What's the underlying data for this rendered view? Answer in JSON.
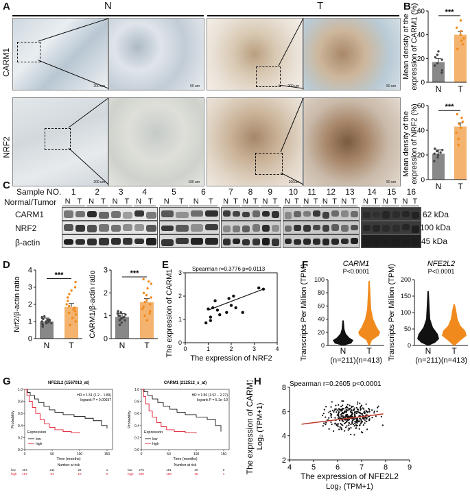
{
  "panel_labels": {
    "A": "A",
    "B": "B",
    "C": "C",
    "D": "D",
    "E": "E",
    "F": "F",
    "G": "G",
    "H": "H"
  },
  "panel_a": {
    "group_n": "N",
    "group_t": "T",
    "row1": "CARM1",
    "row2": "NRF2",
    "scale_200": "200 um",
    "scale_50": "50 um",
    "scale_100": "100 um",
    "scale_200b": "200um"
  },
  "panel_b": {
    "chart_data": [
      {
        "type": "bar",
        "categories": [
          "N",
          "T"
        ],
        "values": [
          17,
          40
        ],
        "ylim": [
          0,
          60
        ],
        "yticks": [
          0,
          20,
          40,
          60
        ],
        "ylabel_line1": "Mean density of the",
        "ylabel_line2": "expression of CARM1 (%)",
        "sig": "***",
        "points": {
          "N": [
            8,
            10,
            14,
            16,
            19,
            21,
            23,
            26
          ],
          "T": [
            28,
            32,
            35,
            37,
            40,
            43,
            46,
            52
          ]
        }
      },
      {
        "type": "bar",
        "categories": [
          "N",
          "T"
        ],
        "values": [
          21,
          43
        ],
        "ylim": [
          0,
          60
        ],
        "yticks": [
          0,
          20,
          40,
          60
        ],
        "ylabel_line1": "Mean density of the",
        "ylabel_line2": "expression of NRF2 (%)",
        "sig": "***",
        "points": {
          "N": [
            15,
            18,
            20,
            21,
            22,
            23,
            24,
            25
          ],
          "T": [
            28,
            33,
            38,
            42,
            45,
            47,
            50,
            53
          ]
        }
      }
    ],
    "colors": {
      "N": "#888888",
      "T": "#f4b36e"
    }
  },
  "panel_c": {
    "sample_label": "Sample NO.",
    "nt_label": "Normal/Tumor",
    "samples": [
      "1",
      "2",
      "3",
      "4",
      "5",
      "6",
      "7",
      "8",
      "9",
      "10",
      "11",
      "12",
      "13",
      "14",
      "15",
      "16"
    ],
    "n": "N",
    "t": "T",
    "rows": [
      "CARM1",
      "NRF2",
      "β-actin"
    ],
    "kda": [
      "62 kDa",
      "100 kDa",
      "45 kDa"
    ]
  },
  "panel_d": {
    "chart_data": [
      {
        "type": "bar",
        "categories": [
          "N",
          "T"
        ],
        "values": [
          1.0,
          1.85
        ],
        "ylim": [
          0,
          4
        ],
        "yticks": [
          0,
          1,
          2,
          3,
          4
        ],
        "ylabel": "Nrf2/β-actin ratio",
        "sig": "***",
        "points": {
          "N": [
            0.7,
            0.8,
            0.85,
            0.9,
            0.95,
            1.0,
            1.0,
            1.05,
            1.1,
            1.15,
            1.2,
            1.25,
            1.3,
            1.0,
            0.9,
            1.1
          ],
          "T": [
            0.8,
            1.0,
            1.2,
            1.4,
            1.5,
            1.6,
            1.7,
            1.8,
            1.9,
            2.0,
            2.2,
            2.4,
            2.6,
            2.8,
            3.0,
            3.3
          ]
        }
      },
      {
        "type": "bar",
        "categories": [
          "N",
          "T"
        ],
        "values": [
          0.95,
          1.6
        ],
        "ylim": [
          0,
          3
        ],
        "yticks": [
          0,
          1,
          2,
          3
        ],
        "ylabel": "CARM1/β-actin ratio",
        "sig": "***",
        "points": {
          "N": [
            0.6,
            0.7,
            0.8,
            0.85,
            0.9,
            0.95,
            1.0,
            1.0,
            1.05,
            1.1,
            1.15,
            1.2,
            0.9,
            1.0,
            0.8,
            1.1
          ],
          "T": [
            0.8,
            1.0,
            1.1,
            1.2,
            1.3,
            1.4,
            1.5,
            1.6,
            1.7,
            1.8,
            1.9,
            2.0,
            2.2,
            2.4,
            2.5,
            2.6
          ]
        }
      }
    ]
  },
  "panel_e": {
    "chart_data": {
      "type": "scatter",
      "title": "Spearman r=0.3776    p=0.0113",
      "xlabel": "The expression of NRF2",
      "ylabel": "The expression of CARM1",
      "xlim": [
        0,
        4
      ],
      "ylim": [
        0,
        3
      ],
      "xticks": [
        0,
        1,
        2,
        3,
        4
      ],
      "yticks": [
        0,
        1,
        2,
        3
      ],
      "x": [
        0.9,
        1.0,
        1.1,
        1.2,
        1.3,
        1.4,
        1.5,
        1.8,
        1.9,
        2.0,
        2.1,
        2.2,
        2.5,
        3.2,
        3.4,
        1.1
      ],
      "y": [
        0.85,
        1.45,
        1.1,
        1.5,
        1.8,
        1.4,
        1.2,
        1.3,
        1.9,
        1.6,
        2.0,
        1.5,
        1.3,
        2.35,
        2.3,
        0.95
      ],
      "fit": [
        [
          1.0,
          1.4
        ],
        [
          3.4,
          2.3
        ]
      ]
    }
  },
  "panel_f": {
    "chart_data": [
      {
        "type": "violin",
        "title": "CARM1",
        "pval": "P<0.0001",
        "ylabel": "Transcripts Per Million (TPM)",
        "ylim": [
          0,
          100
        ],
        "yticks": [
          0,
          20,
          40,
          60,
          80,
          100
        ],
        "categories": [
          "N",
          "T"
        ],
        "n_labels": [
          "(n=211)",
          "(n=413)"
        ],
        "colors": [
          "#111111",
          "#f08a1c"
        ]
      },
      {
        "type": "violin",
        "title": "NFE2L2",
        "pval": "P<0.0001",
        "ylabel": "Transcripts Per Million (TPM)",
        "ylim": [
          0,
          200
        ],
        "yticks": [
          0,
          50,
          100,
          150,
          200
        ],
        "categories": [
          "N",
          "T"
        ],
        "n_labels": [
          "(n=211)",
          "(n=413)"
        ],
        "colors": [
          "#111111",
          "#f08a1c"
        ]
      }
    ]
  },
  "panel_g": {
    "chart_data": [
      {
        "type": "line",
        "title": "NFE2L2 (1567013_at)",
        "hr": "HR = 1.51 (1.2 − 1.89)",
        "logrank": "logrank P = 0.00037",
        "xlabel": "Time (months)",
        "ylabel": "Probability",
        "xticks": [
          0,
          50,
          100,
          150
        ],
        "yticks": [
          0.0,
          0.2,
          0.4,
          0.6,
          0.8,
          1.0
        ],
        "legend_title": "Expression",
        "legend": [
          "low",
          "high"
        ],
        "risk_title": "Number at risk",
        "risk_rows": [
          {
            "label": "low",
            "values": [
              "404",
              "211",
              "29",
              "1"
            ]
          },
          {
            "label": "high",
            "values": [
              "197",
              "54",
              "10",
              "0"
            ]
          }
        ]
      },
      {
        "type": "line",
        "title": "CARM1 (212512_s_at)",
        "hr": "HR = 1.86 (1.52 − 2.27)",
        "logrank": "logrank P = 5.1e−10",
        "xlabel": "Time (months)",
        "ylabel": "Probability",
        "xticks": [
          0,
          50,
          100,
          150
        ],
        "yticks": [
          0.0,
          0.2,
          0.4,
          0.6,
          0.8,
          1.0
        ],
        "legend_title": "Expression",
        "legend": [
          "low",
          "high"
        ],
        "risk_title": "Number at risk",
        "risk_rows": [
          {
            "label": "low",
            "values": [
              "276",
              "181",
              "30",
              "0"
            ]
          },
          {
            "label": "high",
            "values": [
              "600",
              "183",
              "35",
              "1"
            ]
          }
        ]
      }
    ]
  },
  "panel_h": {
    "chart_data": {
      "type": "scatter",
      "title": "Spearman  r=0.2605   p<0.0001",
      "xlabel_line1": "The expression of NFE2L2",
      "xlabel_line2": "Log₂ (TPM+1)",
      "ylabel_line1": "The expression of CARM1",
      "ylabel_line2": "Log₂ (TPM+1)",
      "xlim": [
        4,
        9
      ],
      "ylim": [
        2,
        8
      ],
      "xticks": [
        4,
        5,
        6,
        7,
        8,
        9
      ],
      "yticks": [
        2,
        4,
        6,
        8
      ],
      "fit": [
        [
          4.5,
          4.95
        ],
        [
          7.9,
          5.8
        ]
      ]
    }
  }
}
